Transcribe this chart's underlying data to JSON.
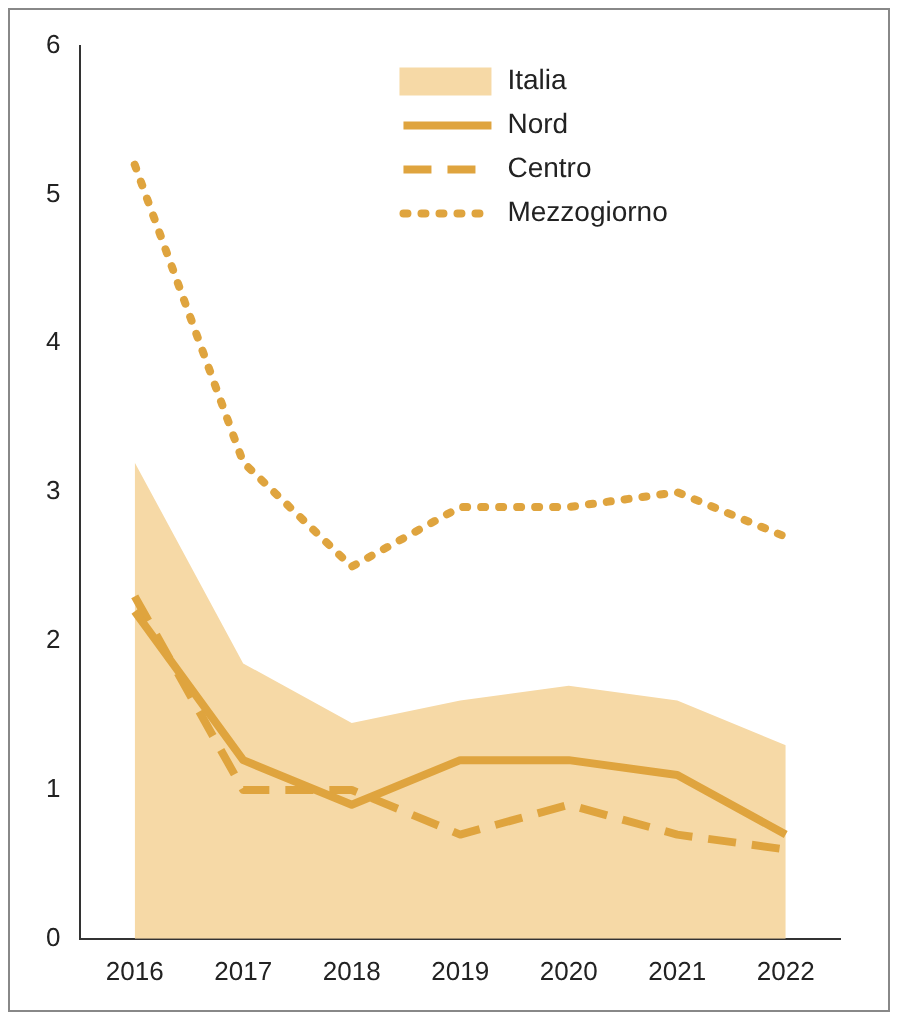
{
  "chart_data": {
    "type": "line",
    "categories": [
      "2016",
      "2017",
      "2018",
      "2019",
      "2020",
      "2021",
      "2022"
    ],
    "series": [
      {
        "name": "Italia",
        "type": "area",
        "color": "#f6d9a6",
        "values": [
          3.2,
          1.85,
          1.45,
          1.6,
          1.7,
          1.6,
          1.3
        ]
      },
      {
        "name": "Nord",
        "color": "#dfa43e",
        "line_style": "solid",
        "values": [
          2.2,
          1.2,
          0.9,
          1.2,
          1.2,
          1.1,
          0.7
        ]
      },
      {
        "name": "Centro",
        "color": "#dfa43e",
        "line_style": "dashed",
        "values": [
          2.3,
          1.0,
          1.0,
          0.7,
          0.9,
          0.7,
          0.6
        ]
      },
      {
        "name": "Mezzogiorno",
        "color": "#dfa43e",
        "line_style": "dotted",
        "values": [
          5.2,
          3.2,
          2.5,
          2.9,
          2.9,
          3.0,
          2.7
        ]
      }
    ],
    "ylim": [
      0,
      6
    ],
    "yticks": [
      0,
      1,
      2,
      3,
      4,
      5,
      6
    ],
    "grid": false,
    "legend": "top right",
    "marker": "none"
  }
}
